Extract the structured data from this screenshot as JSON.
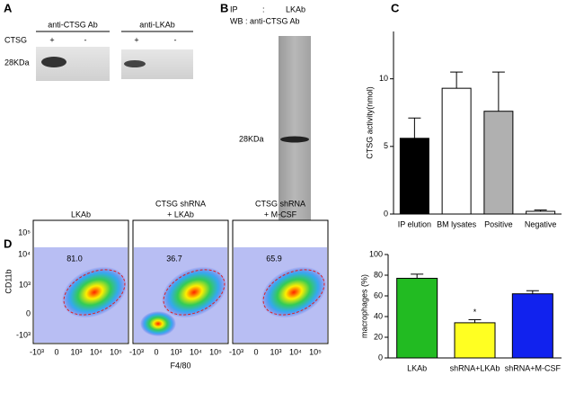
{
  "panel_labels": [
    "A",
    "B",
    "C",
    "D"
  ],
  "panel_a": {
    "antibodies": [
      "anti-CTSG Ab",
      "anti-LKAb"
    ],
    "row_label": "CTSG",
    "lanes": [
      "+",
      "-",
      "+",
      "-"
    ],
    "marker": "28KDa"
  },
  "panel_b": {
    "ip_label": "IP",
    "ip_sep": ":",
    "ip_value": "LKAb",
    "wb": "WB : anti-CTSG Ab",
    "marker": "28KDa"
  },
  "chart_data": [
    {
      "type": "bar",
      "y_label": "CTSG activity(nmol)",
      "categories": [
        "IP elution",
        "BM lysates",
        "Positive",
        "Negative"
      ],
      "values": [
        5.6,
        9.3,
        7.6,
        0.2
      ],
      "errors": [
        1.5,
        1.2,
        2.9,
        0.1
      ],
      "colors": [
        "#000000",
        "#ffffff",
        "#b0b0b0",
        "#ffffff"
      ],
      "ylim": [
        0,
        13.5
      ],
      "yticks": [
        0,
        5,
        10
      ]
    },
    {
      "type": "bar",
      "y_label": "macrophages (%)",
      "categories": [
        "LKAb",
        "shRNA+LKAb",
        "shRNA+M-CSF"
      ],
      "values": [
        77,
        34,
        62
      ],
      "errors": [
        4,
        3,
        3
      ],
      "colors": [
        "#22bb22",
        "#ffff22",
        "#1122ee"
      ],
      "ylim": [
        0,
        100
      ],
      "yticks": [
        0,
        20,
        40,
        60,
        80,
        100
      ],
      "annotation": "*"
    }
  ],
  "panel_d_flow": {
    "titles": [
      [
        "LKAb"
      ],
      [
        "CTSG shRNA",
        "+ LKAb"
      ],
      [
        "CTSG shRNA",
        "+ M-CSF"
      ]
    ],
    "gate_values": [
      "81.0",
      "36.7",
      "65.9"
    ],
    "y_label": "CD11b",
    "x_label": "F4/80",
    "y_ticks": [
      "10⁵",
      "10⁴",
      "10³",
      "0",
      "-10³"
    ],
    "x_ticks": [
      "-10³",
      "0",
      "10³",
      "10⁴",
      "10⁵"
    ]
  }
}
